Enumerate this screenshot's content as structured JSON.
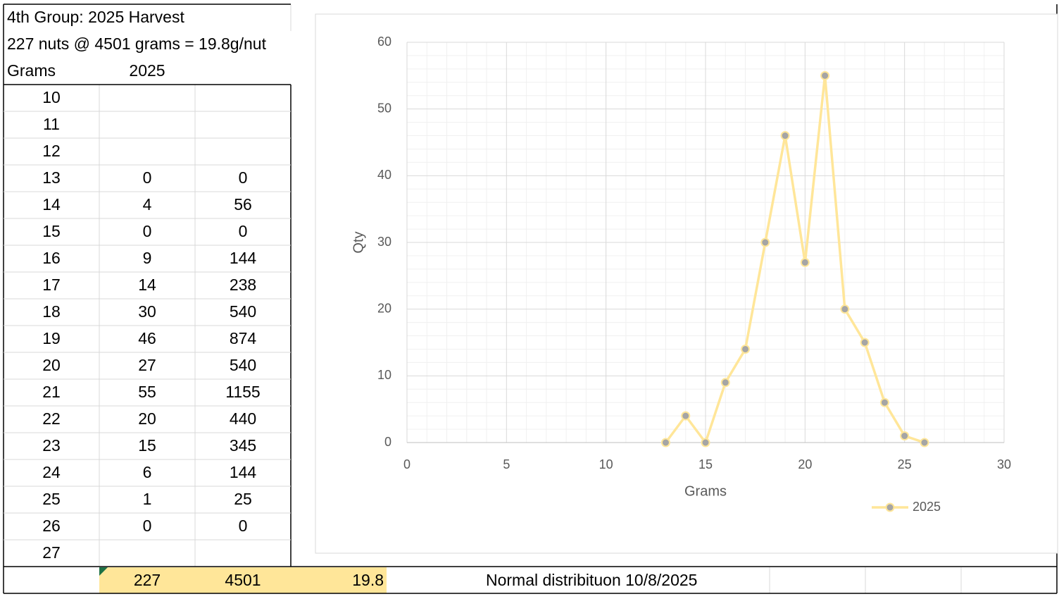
{
  "sheet": {
    "title": "4th Group: 2025 Harvest",
    "subtitle": "227 nuts @ 4501 grams = 19.8g/nut",
    "headers": [
      "Grams",
      "2025"
    ],
    "rows": [
      [
        10,
        null,
        null
      ],
      [
        11,
        null,
        null
      ],
      [
        12,
        null,
        null
      ],
      [
        13,
        0,
        0
      ],
      [
        14,
        4,
        56
      ],
      [
        15,
        0,
        0
      ],
      [
        16,
        9,
        144
      ],
      [
        17,
        14,
        238
      ],
      [
        18,
        30,
        540
      ],
      [
        19,
        46,
        874
      ],
      [
        20,
        27,
        540
      ],
      [
        21,
        55,
        1155
      ],
      [
        22,
        20,
        440
      ],
      [
        23,
        15,
        345
      ],
      [
        24,
        6,
        144
      ],
      [
        25,
        1,
        25
      ],
      [
        26,
        0,
        0
      ],
      [
        27,
        null,
        null
      ]
    ],
    "totals": [
      227,
      4501,
      19.8
    ],
    "note": "Normal distribituon 10/8/2025"
  },
  "chart_data": {
    "type": "line",
    "x_label": "Grams",
    "y_label": "Qty",
    "x": [
      13,
      14,
      15,
      16,
      17,
      18,
      19,
      20,
      21,
      22,
      23,
      24,
      25,
      26
    ],
    "series": [
      {
        "name": "2025",
        "color": "#ffe699",
        "marker_color": "#a5a5a5",
        "values": [
          0,
          4,
          0,
          9,
          14,
          30,
          46,
          27,
          55,
          20,
          15,
          6,
          1,
          0
        ]
      }
    ],
    "xlim": [
      0,
      30
    ],
    "xticks": [
      0,
      5,
      10,
      15,
      20,
      25,
      30
    ],
    "ylim": [
      0,
      60
    ],
    "yticks": [
      0,
      10,
      20,
      30,
      40,
      50,
      60
    ],
    "grid": true,
    "legend": "bottom-right"
  }
}
